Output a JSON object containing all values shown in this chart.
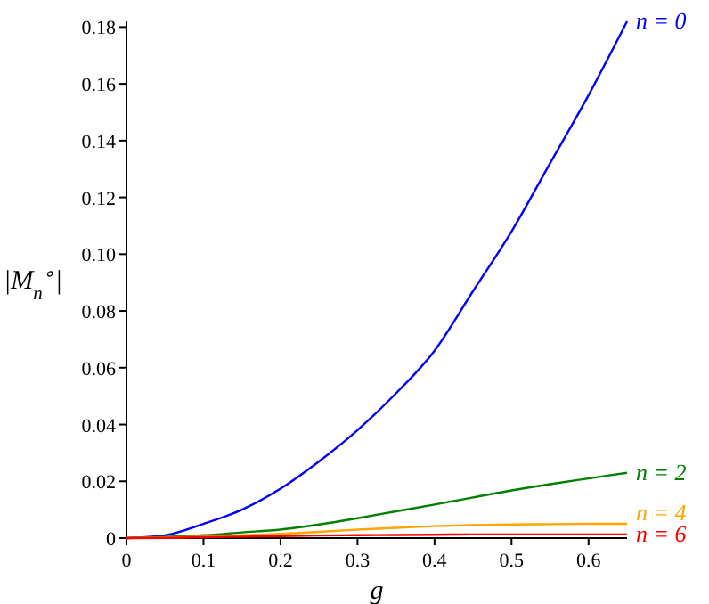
{
  "chart_data": {
    "type": "line",
    "xlabel": "g",
    "ylabel": "|M$_{n}$$^{∘}$|",
    "x": [
      0,
      0.05,
      0.1,
      0.15,
      0.2,
      0.25,
      0.3,
      0.35,
      0.4,
      0.45,
      0.5,
      0.55,
      0.6,
      0.65
    ],
    "series": [
      {
        "name": "n = 0",
        "color": "#0000ff",
        "values": [
          0,
          0.001,
          0.005,
          0.01,
          0.0174,
          0.027,
          0.038,
          0.051,
          0.066,
          0.087,
          0.108,
          0.132,
          0.156,
          0.182
        ]
      },
      {
        "name": "n = 2",
        "color": "#008000",
        "values": [
          0,
          0.0004,
          0.001,
          0.002,
          0.003,
          0.0048,
          0.007,
          0.0094,
          0.0118,
          0.0143,
          0.0168,
          0.019,
          0.021,
          0.023
        ]
      },
      {
        "name": "n = 4",
        "color": "#ffa500",
        "values": [
          0,
          0.0002,
          0.0005,
          0.001,
          0.0015,
          0.0022,
          0.003,
          0.0036,
          0.0042,
          0.0046,
          0.0048,
          0.0049,
          0.005,
          0.005
        ]
      },
      {
        "name": "n = 6",
        "color": "#ff0000",
        "values": [
          0,
          0.0001,
          0.0003,
          0.0005,
          0.0007,
          0.0009,
          0.001,
          0.0011,
          0.0012,
          0.0013,
          0.0013,
          0.0013,
          0.0013,
          0.0013
        ]
      }
    ],
    "xlim": [
      0,
      0.65
    ],
    "ylim": [
      0,
      0.182
    ],
    "xticks": [
      0,
      0.1,
      0.2,
      0.3,
      0.4,
      0.5,
      0.6
    ],
    "yticks": [
      0,
      0.02,
      0.04,
      0.06,
      0.08,
      {
        "value": 0.1,
        "label": "0.10"
      },
      0.12,
      0.14,
      0.16,
      0.18
    ],
    "grid": false
  }
}
